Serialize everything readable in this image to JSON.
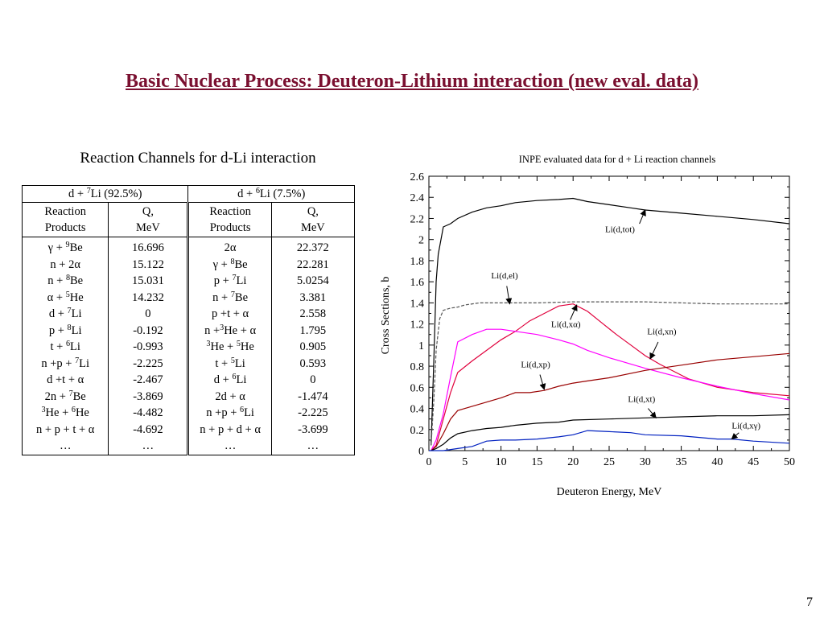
{
  "slide": {
    "title": "Basic Nuclear Process: Deuteron-Lithium interaction (new eval. data)",
    "page_number": "7"
  },
  "table": {
    "caption": "Reaction Channels for d-Li interaction",
    "li7": {
      "header": {
        "prefix": "d + ",
        "mass": "7",
        "rest": "Li (92.5%)"
      },
      "col_reaction": [
        "Reaction",
        "Products"
      ],
      "col_q": [
        "Q,",
        "MeV"
      ],
      "rows": [
        {
          "parts": [
            {
              "t": "γ + "
            },
            {
              "s": "9"
            },
            {
              "t": "Be"
            }
          ],
          "q": "16.696"
        },
        {
          "parts": [
            {
              "t": "n + 2α"
            }
          ],
          "q": "15.122"
        },
        {
          "parts": [
            {
              "t": "n + "
            },
            {
              "s": "8"
            },
            {
              "t": "Be"
            }
          ],
          "q": "15.031"
        },
        {
          "parts": [
            {
              "t": "α + "
            },
            {
              "s": "5"
            },
            {
              "t": "He"
            }
          ],
          "q": "14.232"
        },
        {
          "parts": [
            {
              "t": "d + "
            },
            {
              "s": "7"
            },
            {
              "t": "Li"
            }
          ],
          "q": "0"
        },
        {
          "parts": [
            {
              "t": "p + "
            },
            {
              "s": "8"
            },
            {
              "t": "Li"
            }
          ],
          "q": "-0.192"
        },
        {
          "parts": [
            {
              "t": "t + "
            },
            {
              "s": "6"
            },
            {
              "t": "Li"
            }
          ],
          "q": "-0.993"
        },
        {
          "parts": [
            {
              "t": "n +p + "
            },
            {
              "s": "7"
            },
            {
              "t": "Li"
            }
          ],
          "q": "-2.225"
        },
        {
          "parts": [
            {
              "t": "d +t + α"
            }
          ],
          "q": "-2.467"
        },
        {
          "parts": [
            {
              "t": "2n + "
            },
            {
              "s": "7"
            },
            {
              "t": "Be"
            }
          ],
          "q": "-3.869"
        },
        {
          "parts": [
            {
              "s": "3"
            },
            {
              "t": "He + "
            },
            {
              "s": "6"
            },
            {
              "t": "He"
            }
          ],
          "q": "-4.482"
        },
        {
          "parts": [
            {
              "t": "n + p + t + α"
            }
          ],
          "q": "-4.692"
        },
        {
          "parts": [
            {
              "t": "…"
            }
          ],
          "q": "…"
        }
      ]
    },
    "li6": {
      "header": {
        "prefix": "d + ",
        "mass": "6",
        "rest": "Li (7.5%)"
      },
      "col_reaction": [
        "Reaction",
        "Products"
      ],
      "col_q": [
        "Q,",
        "MeV"
      ],
      "rows": [
        {
          "parts": [
            {
              "t": "2α"
            }
          ],
          "q": "22.372"
        },
        {
          "parts": [
            {
              "t": "γ + "
            },
            {
              "s": "8"
            },
            {
              "t": "Be"
            }
          ],
          "q": "22.281"
        },
        {
          "parts": [
            {
              "t": "p + "
            },
            {
              "s": "7"
            },
            {
              "t": "Li"
            }
          ],
          "q": "5.0254"
        },
        {
          "parts": [
            {
              "t": "n + "
            },
            {
              "s": "7"
            },
            {
              "t": "Be"
            }
          ],
          "q": "3.381"
        },
        {
          "parts": [
            {
              "t": "p +t + α"
            }
          ],
          "q": "2.558"
        },
        {
          "parts": [
            {
              "t": "n +"
            },
            {
              "s": "3"
            },
            {
              "t": "He + α"
            }
          ],
          "q": "1.795"
        },
        {
          "parts": [
            {
              "s": "3"
            },
            {
              "t": "He + "
            },
            {
              "s": "5"
            },
            {
              "t": "He"
            }
          ],
          "q": "0.905"
        },
        {
          "parts": [
            {
              "t": "t + "
            },
            {
              "s": "5"
            },
            {
              "t": "Li"
            }
          ],
          "q": "0.593"
        },
        {
          "parts": [
            {
              "t": "d + "
            },
            {
              "s": "6"
            },
            {
              "t": "Li"
            }
          ],
          "q": "0"
        },
        {
          "parts": [
            {
              "t": "2d + α"
            }
          ],
          "q": "-1.474"
        },
        {
          "parts": [
            {
              "t": "n +p + "
            },
            {
              "s": "6"
            },
            {
              "t": "Li"
            }
          ],
          "q": "-2.225"
        },
        {
          "parts": [
            {
              "t": "n + p + d + α"
            }
          ],
          "q": "-3.699"
        },
        {
          "parts": [
            {
              "t": "…"
            }
          ],
          "q": "…"
        }
      ]
    }
  },
  "chart_data": {
    "type": "line",
    "title": "INPE evaluated data for d + Li reaction channels",
    "xlabel": "Deuteron Energy, MeV",
    "ylabel": "Cross Sections,  b",
    "xlim": [
      0,
      50
    ],
    "ylim": [
      0,
      2.6
    ],
    "xticks": [
      0,
      5,
      10,
      15,
      20,
      25,
      30,
      35,
      40,
      45,
      50
    ],
    "yticks": [
      0.0,
      0.2,
      0.4,
      0.6,
      0.8,
      1.0,
      1.2,
      1.4,
      1.6,
      1.8,
      2.0,
      2.2,
      2.4,
      2.6
    ],
    "grid": false,
    "series": [
      {
        "name": "Li(d,tot)",
        "color": "#000000",
        "dashed": false,
        "points": [
          [
            0.3,
            0.05
          ],
          [
            0.7,
            0.9
          ],
          [
            1.0,
            1.6
          ],
          [
            1.3,
            1.86
          ],
          [
            2,
            2.12
          ],
          [
            3,
            2.15
          ],
          [
            4,
            2.2
          ],
          [
            6,
            2.26
          ],
          [
            8,
            2.3
          ],
          [
            10,
            2.32
          ],
          [
            12,
            2.35
          ],
          [
            15,
            2.37
          ],
          [
            18,
            2.38
          ],
          [
            20,
            2.39
          ],
          [
            22,
            2.36
          ],
          [
            25,
            2.33
          ],
          [
            28,
            2.3
          ],
          [
            30,
            2.28
          ],
          [
            35,
            2.25
          ],
          [
            40,
            2.22
          ],
          [
            45,
            2.19
          ],
          [
            50,
            2.15
          ]
        ]
      },
      {
        "name": "Li(d,el)",
        "color": "#555555",
        "dashed": true,
        "points": [
          [
            0.3,
            0.05
          ],
          [
            0.7,
            0.5
          ],
          [
            1.0,
            0.95
          ],
          [
            1.5,
            1.25
          ],
          [
            2,
            1.33
          ],
          [
            3,
            1.35
          ],
          [
            4,
            1.36
          ],
          [
            5,
            1.38
          ],
          [
            7,
            1.4
          ],
          [
            10,
            1.4
          ],
          [
            15,
            1.4
          ],
          [
            20,
            1.41
          ],
          [
            25,
            1.41
          ],
          [
            30,
            1.41
          ],
          [
            35,
            1.4
          ],
          [
            40,
            1.39
          ],
          [
            45,
            1.39
          ],
          [
            50,
            1.39
          ]
        ]
      },
      {
        "name": "Li(d,xα)",
        "color": "#e0003c",
        "dashed": false,
        "points": [
          [
            0.3,
            0.0
          ],
          [
            1,
            0.05
          ],
          [
            2,
            0.3
          ],
          [
            3,
            0.55
          ],
          [
            4,
            0.74
          ],
          [
            6,
            0.85
          ],
          [
            8,
            0.95
          ],
          [
            10,
            1.05
          ],
          [
            12,
            1.13
          ],
          [
            14,
            1.23
          ],
          [
            16,
            1.3
          ],
          [
            18,
            1.37
          ],
          [
            20,
            1.39
          ],
          [
            22,
            1.32
          ],
          [
            24,
            1.21
          ],
          [
            26,
            1.1
          ],
          [
            28,
            1.0
          ],
          [
            30,
            0.9
          ],
          [
            32,
            0.82
          ],
          [
            34,
            0.75
          ],
          [
            36,
            0.68
          ],
          [
            40,
            0.6
          ],
          [
            45,
            0.55
          ],
          [
            50,
            0.52
          ]
        ]
      },
      {
        "name": "Li(d,xp)",
        "color": "#ff00ff",
        "dashed": false,
        "points": [
          [
            0.3,
            0.0
          ],
          [
            1,
            0.1
          ],
          [
            2,
            0.35
          ],
          [
            3,
            0.7
          ],
          [
            4,
            1.03
          ],
          [
            6,
            1.1
          ],
          [
            8,
            1.15
          ],
          [
            10,
            1.15
          ],
          [
            12,
            1.13
          ],
          [
            15,
            1.1
          ],
          [
            18,
            1.05
          ],
          [
            20,
            1.01
          ],
          [
            22,
            0.95
          ],
          [
            25,
            0.88
          ],
          [
            30,
            0.78
          ],
          [
            35,
            0.69
          ],
          [
            40,
            0.61
          ],
          [
            45,
            0.54
          ],
          [
            50,
            0.48
          ]
        ]
      },
      {
        "name": "Li(d,xn)",
        "color": "#990000",
        "dashed": false,
        "points": [
          [
            0.3,
            0.0
          ],
          [
            1,
            0.04
          ],
          [
            2,
            0.16
          ],
          [
            3,
            0.3
          ],
          [
            4,
            0.38
          ],
          [
            6,
            0.42
          ],
          [
            8,
            0.46
          ],
          [
            10,
            0.5
          ],
          [
            12,
            0.55
          ],
          [
            14,
            0.55
          ],
          [
            16,
            0.57
          ],
          [
            18,
            0.61
          ],
          [
            20,
            0.64
          ],
          [
            22,
            0.66
          ],
          [
            25,
            0.69
          ],
          [
            30,
            0.76
          ],
          [
            35,
            0.81
          ],
          [
            40,
            0.86
          ],
          [
            45,
            0.89
          ],
          [
            50,
            0.92
          ]
        ]
      },
      {
        "name": "Li(d,xt)",
        "color": "#000000",
        "dashed": false,
        "points": [
          [
            0.3,
            0.0
          ],
          [
            1,
            0.02
          ],
          [
            2,
            0.06
          ],
          [
            3,
            0.12
          ],
          [
            4,
            0.16
          ],
          [
            6,
            0.19
          ],
          [
            8,
            0.21
          ],
          [
            10,
            0.22
          ],
          [
            12,
            0.24
          ],
          [
            15,
            0.26
          ],
          [
            18,
            0.27
          ],
          [
            20,
            0.29
          ],
          [
            25,
            0.3
          ],
          [
            30,
            0.31
          ],
          [
            35,
            0.32
          ],
          [
            40,
            0.33
          ],
          [
            45,
            0.33
          ],
          [
            50,
            0.34
          ]
        ]
      },
      {
        "name": "Li(d,xγ)",
        "color": "#0020c0",
        "dashed": false,
        "points": [
          [
            0,
            0.0
          ],
          [
            2,
            0.0
          ],
          [
            4,
            0.02
          ],
          [
            6,
            0.04
          ],
          [
            8,
            0.09
          ],
          [
            10,
            0.1
          ],
          [
            12,
            0.1
          ],
          [
            15,
            0.11
          ],
          [
            18,
            0.13
          ],
          [
            20,
            0.15
          ],
          [
            22,
            0.19
          ],
          [
            25,
            0.18
          ],
          [
            28,
            0.17
          ],
          [
            30,
            0.15
          ],
          [
            35,
            0.14
          ],
          [
            40,
            0.11
          ],
          [
            42,
            0.11
          ],
          [
            45,
            0.09
          ],
          [
            50,
            0.07
          ]
        ]
      }
    ],
    "annotations": [
      {
        "text": "Li(d,tot)",
        "x": 26.5,
        "y": 2.07,
        "tip": [
          30,
          2.28
        ],
        "tail": [
          29.2,
          2.15
        ]
      },
      {
        "text": "Li(d,el)",
        "x": 10.5,
        "y": 1.63,
        "tip": [
          11.2,
          1.39
        ],
        "tail": [
          10.8,
          1.56
        ]
      },
      {
        "text": "Li(d,xα)",
        "x": 19,
        "y": 1.17,
        "tip": [
          20.5,
          1.38
        ],
        "tail": [
          19.6,
          1.24
        ]
      },
      {
        "text": "Li(d,xn)",
        "x": 32.3,
        "y": 1.1,
        "tip": [
          30.7,
          0.87
        ],
        "tail": [
          31.8,
          1.03
        ]
      },
      {
        "text": "Li(d,xp)",
        "x": 14.8,
        "y": 0.79,
        "tip": [
          16,
          0.58
        ],
        "tail": [
          15.4,
          0.72
        ]
      },
      {
        "text": "Li(d,xt)",
        "x": 29.5,
        "y": 0.46,
        "tip": [
          31.5,
          0.31
        ],
        "tail": [
          30.4,
          0.4
        ]
      },
      {
        "text": "Li(d,xγ)",
        "x": 44,
        "y": 0.21,
        "tip": [
          42,
          0.11
        ],
        "tail": [
          43,
          0.17
        ]
      }
    ]
  }
}
